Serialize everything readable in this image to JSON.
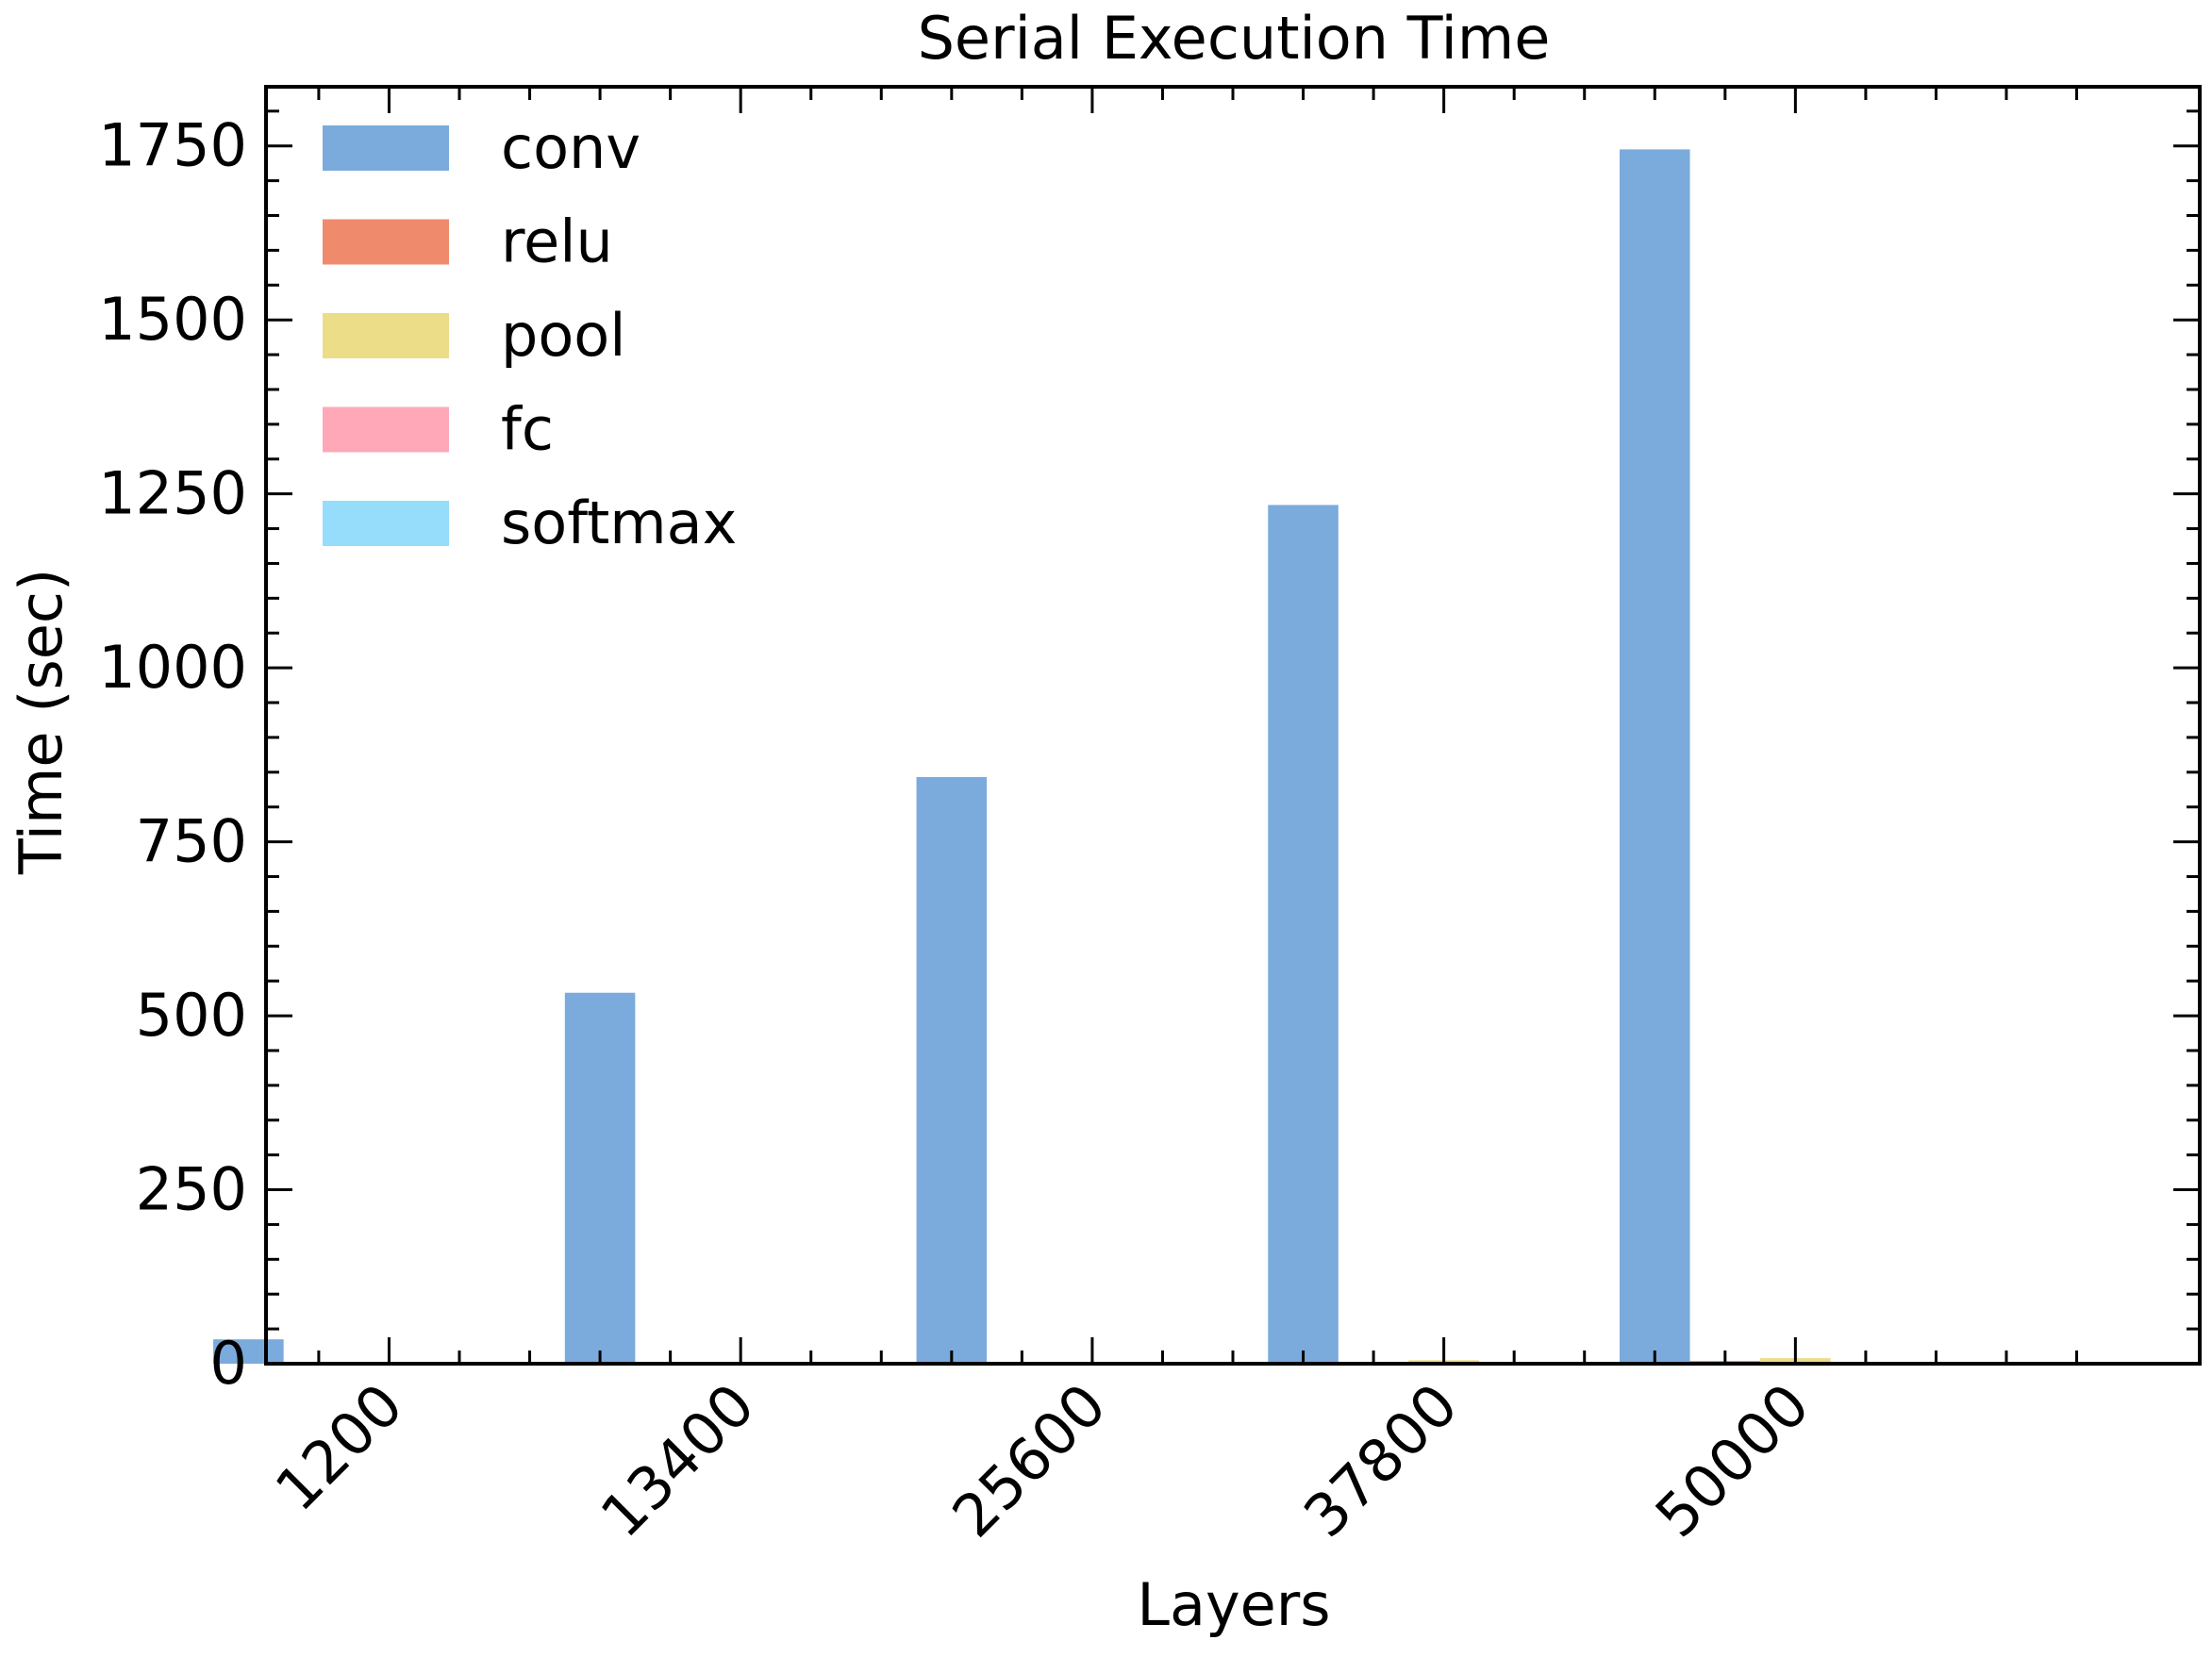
{
  "chart_data": {
    "type": "bar",
    "title": "Serial Execution Time",
    "xlabel": "Layers",
    "ylabel": "Time (sec)",
    "categories": [
      "1200",
      "13400",
      "25600",
      "37800",
      "50000"
    ],
    "ylim": [
      0,
      1835
    ],
    "yticks": [
      0,
      250,
      500,
      750,
      1000,
      1250,
      1500,
      1750
    ],
    "ytick_labels": [
      "0",
      "250",
      "500",
      "750",
      "1000",
      "1250",
      "1500",
      "1750"
    ],
    "legend_position": "upper-left",
    "grid": false,
    "series": [
      {
        "name": "conv",
        "color": "#7aabdc",
        "values": [
          35,
          533,
          843,
          1234,
          1745
        ]
      },
      {
        "name": "relu",
        "color": "#ef8a6c",
        "values": [
          0,
          0.5,
          1,
          2,
          4
        ]
      },
      {
        "name": "pool",
        "color": "#ecdd88",
        "values": [
          0,
          1,
          2,
          5,
          8
        ]
      },
      {
        "name": "fc",
        "color": "#ffa8b8",
        "values": [
          0,
          0,
          0,
          0,
          0
        ]
      },
      {
        "name": "softmax",
        "color": "#96dcfb",
        "values": [
          0,
          0,
          0,
          0,
          0
        ]
      }
    ]
  }
}
